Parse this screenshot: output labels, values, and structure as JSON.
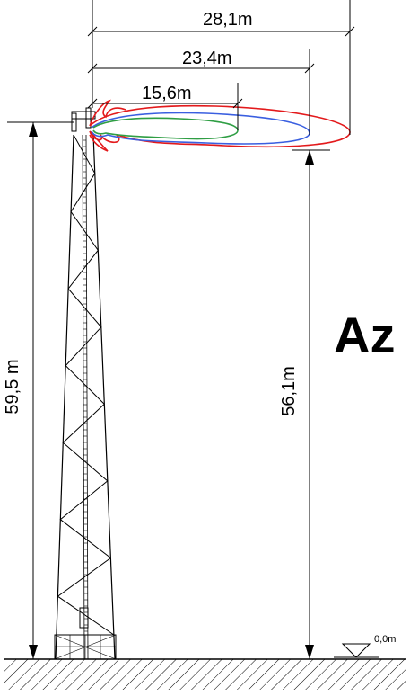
{
  "dimensions": {
    "range_red": "28,1m",
    "range_blue": "23,4m",
    "range_green": "15,6m",
    "tower_height": "59,5 m",
    "antenna_height": "56,1m",
    "ground_level": "0,0m"
  },
  "label": "Az",
  "colors": {
    "red_lobe": "#e31a1c",
    "blue_lobe": "#3a5fe0",
    "green_lobe": "#2f9e44",
    "lines": "#000000"
  }
}
